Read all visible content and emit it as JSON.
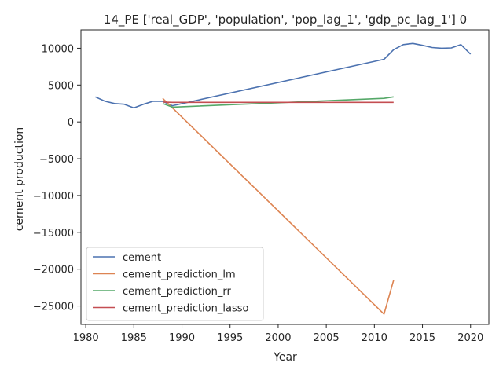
{
  "chart_data": {
    "type": "line",
    "title": "14_PE ['real_GDP', 'population', 'pop_lag_1', 'gdp_pc_lag_1'] 0",
    "xlabel": "Year",
    "ylabel": "cement production",
    "xlim": [
      1979.5,
      2021.9
    ],
    "ylim": [
      -27500,
      12500
    ],
    "xticks": [
      1980,
      1985,
      1990,
      1995,
      2000,
      2005,
      2010,
      2015,
      2020
    ],
    "yticks": [
      -25000,
      -20000,
      -15000,
      -10000,
      -5000,
      0,
      5000,
      10000
    ],
    "grid": false,
    "legend": "lower-left",
    "series": [
      {
        "name": "cement",
        "color": "#4c72b0",
        "points": [
          [
            1981,
            3400
          ],
          [
            1982,
            2800
          ],
          [
            1983,
            2500
          ],
          [
            1984,
            2400
          ],
          [
            1985,
            1900
          ],
          [
            1986,
            2400
          ],
          [
            1987,
            2800
          ],
          [
            1988,
            2800
          ],
          [
            1989,
            2200
          ],
          [
            2011,
            8500
          ],
          [
            2012,
            9800
          ],
          [
            2013,
            10500
          ],
          [
            2014,
            10650
          ],
          [
            2015,
            10400
          ],
          [
            2016,
            10100
          ],
          [
            2017,
            10000
          ],
          [
            2018,
            10050
          ],
          [
            2019,
            10500
          ],
          [
            2020,
            9200
          ]
        ]
      },
      {
        "name": "cement_prediction_lm",
        "color": "#dd8452",
        "points": [
          [
            1988,
            3200
          ],
          [
            2011,
            -26100
          ],
          [
            2012,
            -21500
          ]
        ]
      },
      {
        "name": "cement_prediction_rr",
        "color": "#55a868",
        "points": [
          [
            1988,
            2500
          ],
          [
            1989,
            2000
          ],
          [
            2000,
            2600
          ],
          [
            2011,
            3200
          ],
          [
            2012,
            3400
          ]
        ]
      },
      {
        "name": "cement_prediction_lasso",
        "color": "#c44e52",
        "points": [
          [
            1988,
            2700
          ],
          [
            1989,
            2650
          ],
          [
            2000,
            2650
          ],
          [
            2011,
            2650
          ],
          [
            2012,
            2650
          ]
        ]
      }
    ]
  }
}
